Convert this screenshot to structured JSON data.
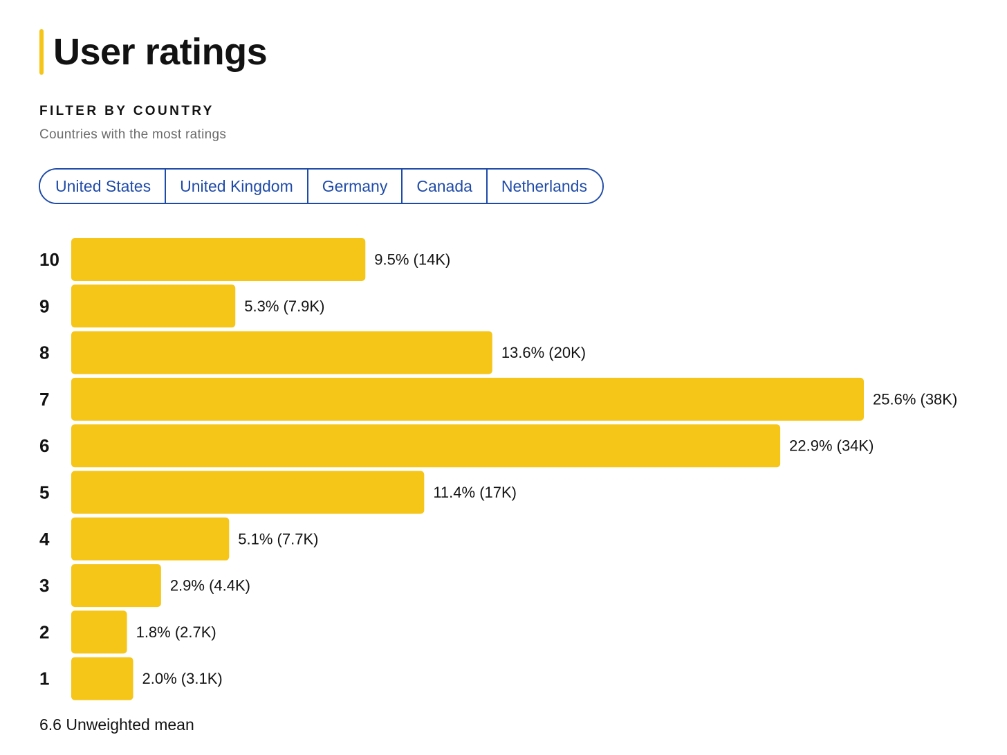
{
  "header": {
    "title": "User ratings",
    "accent_color": "#f5c518"
  },
  "filter": {
    "heading": "FILTER BY COUNTRY",
    "subheading": "Countries with the most ratings",
    "countries": [
      "United States",
      "United Kingdom",
      "Germany",
      "Canada",
      "Netherlands"
    ],
    "border_color": "#1f4ba8"
  },
  "chart_data": {
    "type": "bar",
    "orientation": "horizontal",
    "categories": [
      "10",
      "9",
      "8",
      "7",
      "6",
      "5",
      "4",
      "3",
      "2",
      "1"
    ],
    "values": [
      9.5,
      5.3,
      13.6,
      25.6,
      22.9,
      11.4,
      5.1,
      2.9,
      1.8,
      2.0
    ],
    "unit": "%",
    "data_labels": [
      "9.5% (14K)",
      "5.3% (7.9K)",
      "13.6% (20K)",
      "25.6% (38K)",
      "22.9% (34K)",
      "11.4% (17K)",
      "5.1% (7.7K)",
      "2.9% (4.4K)",
      "1.8% (2.7K)",
      "2.0% (3.1K)"
    ],
    "counts": [
      "14K",
      "7.9K",
      "20K",
      "38K",
      "34K",
      "17K",
      "7.7K",
      "4.4K",
      "2.7K",
      "3.1K"
    ],
    "title": "",
    "xlabel": "",
    "ylabel": "",
    "xlim": [
      0,
      25.6
    ],
    "grid": false,
    "legend": "none",
    "bar_color": "#f5c518"
  },
  "summary": {
    "mean_text": "6.6 Unweighted mean"
  }
}
